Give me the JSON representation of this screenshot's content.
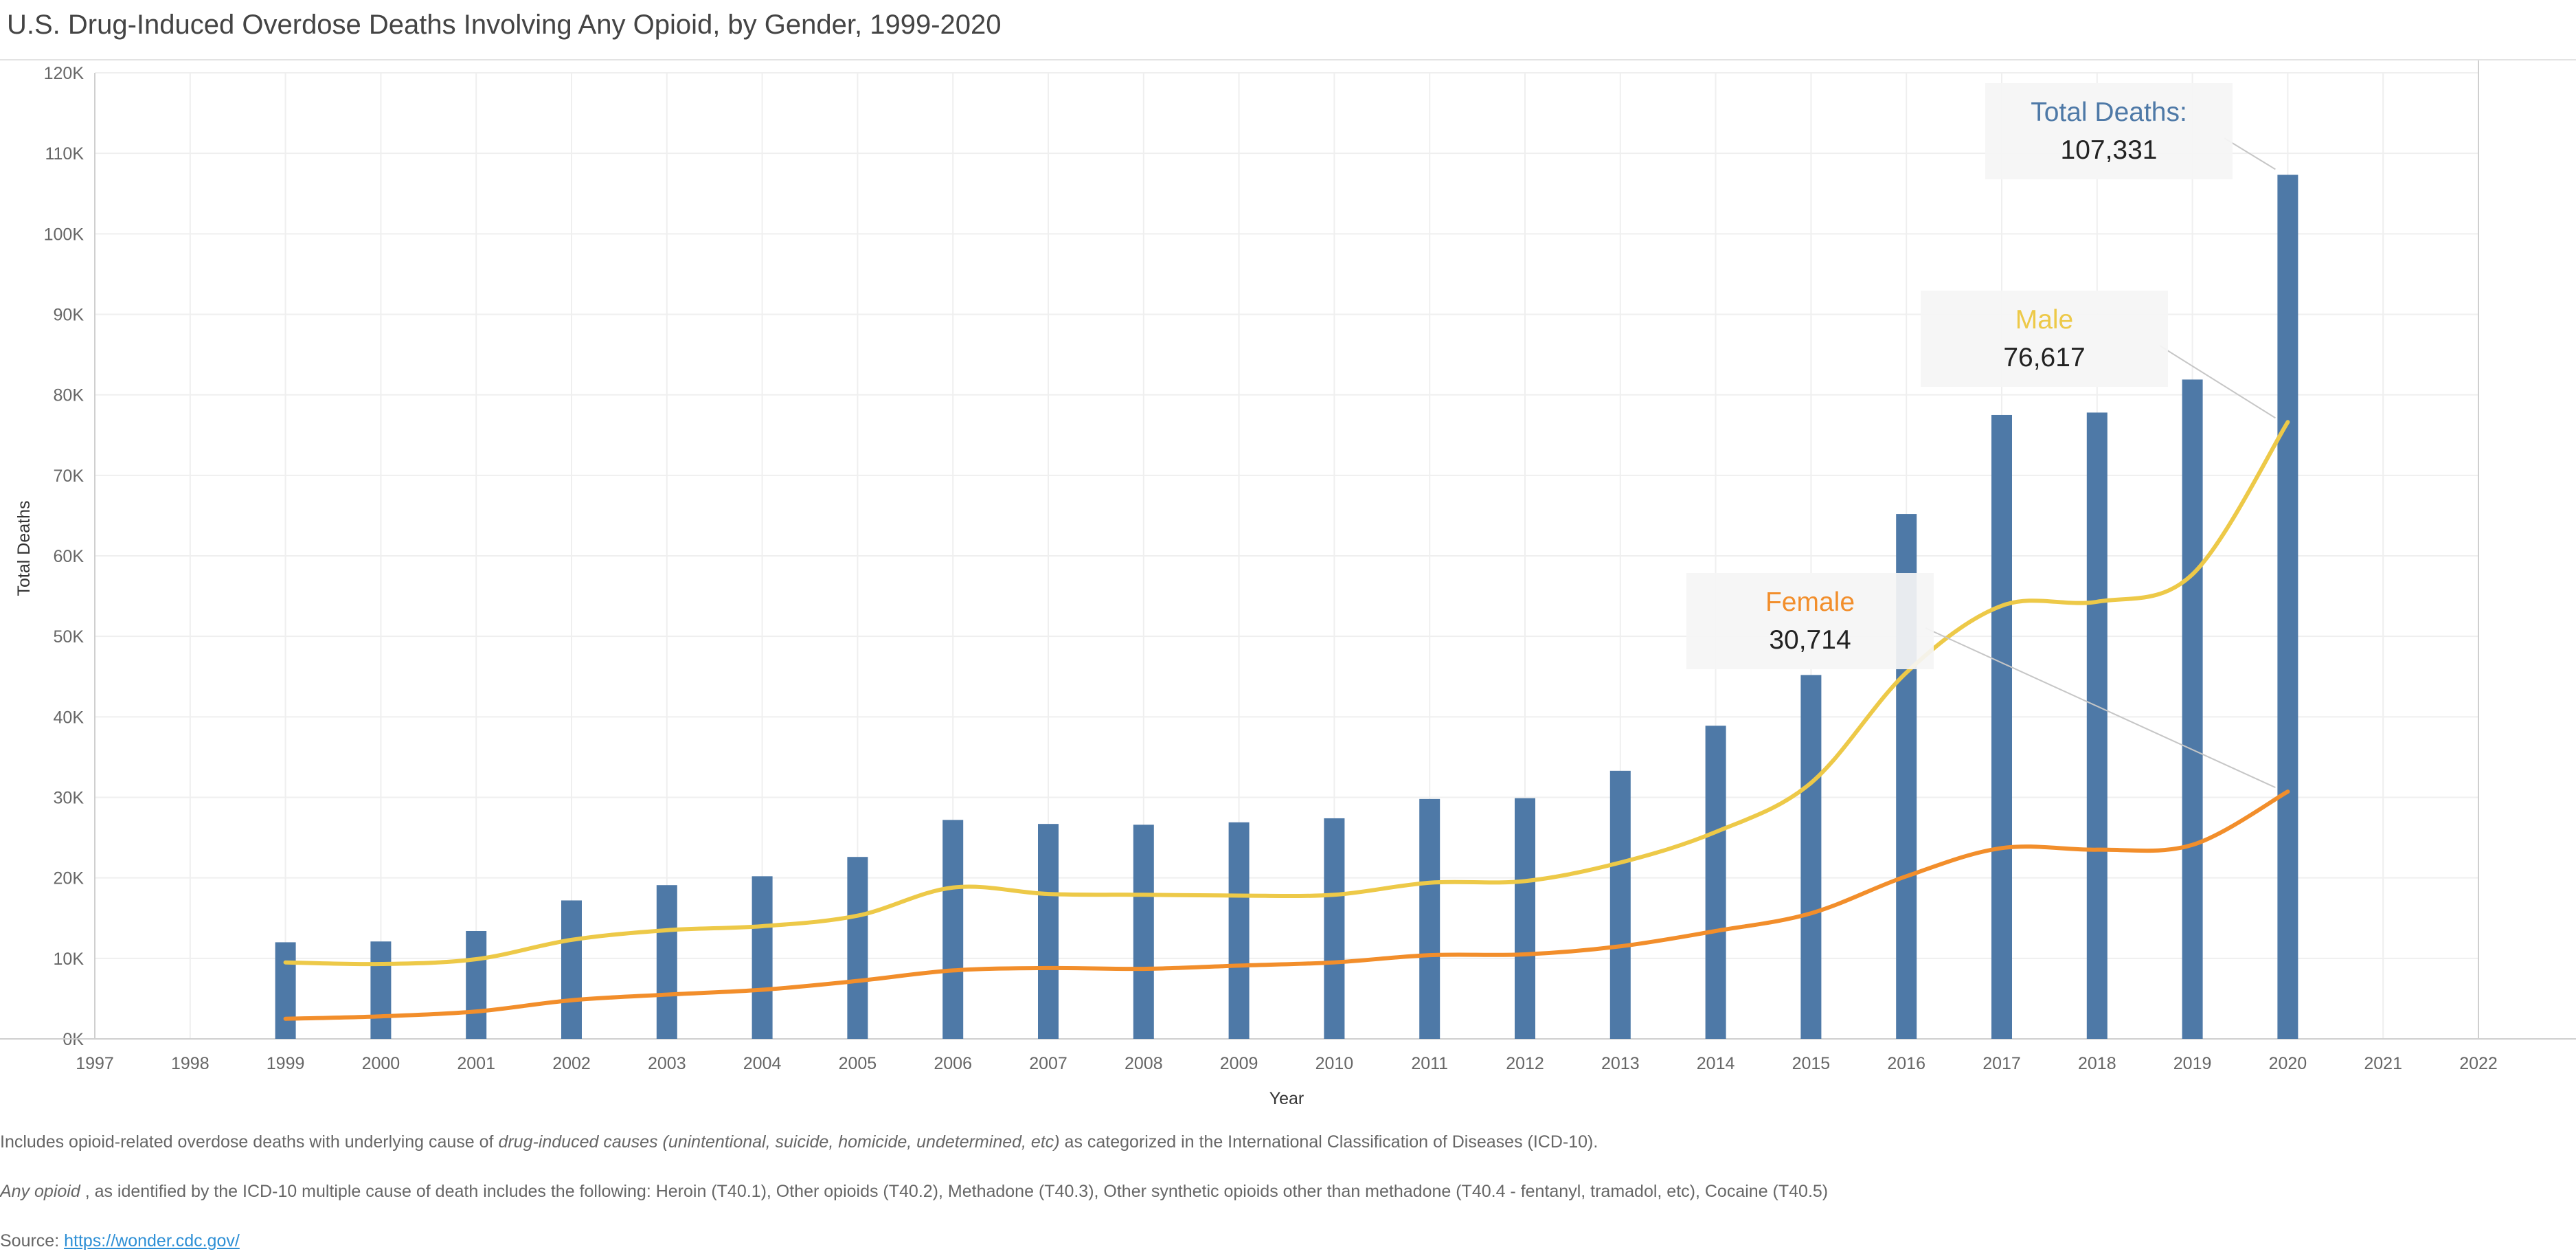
{
  "title": "U.S. Drug-Induced Overdose Deaths Involving Any Opioid, by Gender, 1999-2020",
  "colors": {
    "total": "#4e79a7",
    "male": "#edc948",
    "female": "#f28e2b",
    "grid": "#efefef",
    "axis": "#cfcfcf"
  },
  "chart_data": {
    "type": "bar",
    "xlabel": "Year",
    "ylabel": "Total Deaths",
    "xlim": [
      1997,
      2022
    ],
    "ylim": [
      0,
      120000
    ],
    "x_ticks": [
      "1997",
      "1998",
      "1999",
      "2000",
      "2001",
      "2002",
      "2003",
      "2004",
      "2005",
      "2006",
      "2007",
      "2008",
      "2009",
      "2010",
      "2011",
      "2012",
      "2013",
      "2014",
      "2015",
      "2016",
      "2017",
      "2018",
      "2019",
      "2020",
      "2021",
      "2022"
    ],
    "y_ticks": [
      "0K",
      "10K",
      "20K",
      "30K",
      "40K",
      "50K",
      "60K",
      "70K",
      "80K",
      "90K",
      "100K",
      "110K",
      "120K"
    ],
    "x": [
      1999,
      2000,
      2001,
      2002,
      2003,
      2004,
      2005,
      2006,
      2007,
      2008,
      2009,
      2010,
      2011,
      2012,
      2013,
      2014,
      2015,
      2016,
      2017,
      2018,
      2019,
      2020
    ],
    "series": [
      {
        "name": "Total Deaths",
        "type": "bar",
        "values": [
          12000,
          12100,
          13400,
          17200,
          19100,
          20200,
          22600,
          27200,
          26700,
          26600,
          26900,
          27400,
          29800,
          29900,
          33300,
          38900,
          45200,
          65200,
          77500,
          77800,
          81900,
          107331
        ]
      },
      {
        "name": "Male",
        "type": "line",
        "values": [
          9500,
          9300,
          9900,
          12300,
          13500,
          14000,
          15300,
          18800,
          18000,
          17900,
          17800,
          17900,
          19400,
          19600,
          21900,
          25700,
          31800,
          45500,
          53800,
          54300,
          57700,
          76617
        ]
      },
      {
        "name": "Female",
        "type": "line",
        "values": [
          2500,
          2800,
          3400,
          4800,
          5500,
          6100,
          7200,
          8500,
          8800,
          8700,
          9100,
          9500,
          10400,
          10500,
          11500,
          13400,
          15600,
          20200,
          23700,
          23500,
          24100,
          30714
        ]
      }
    ],
    "annotations": [
      {
        "series": "Total Deaths",
        "label": "Total Deaths:",
        "value": "107,331"
      },
      {
        "series": "Male",
        "label": "Male",
        "value": "76,617"
      },
      {
        "series": "Female",
        "label": "Female",
        "value": "30,714"
      }
    ]
  },
  "footnotes": {
    "line1_pre": "Includes opioid-related overdose deaths with underlying cause of ",
    "line1_italic": "drug-induced causes  (unintentional, suicide, homicide, undetermined, etc)",
    "line1_post": "  as categorized in the International Classification of Diseases (ICD-10).",
    "line2_italic": "Any opioid",
    "line2_post": " , as identified by the ICD-10 multiple cause of death includes the following: Heroin (T40.1), Other opioids (T40.2), Methadone (T40.3), Other synthetic opioids other than methadone (T40.4 - fentanyl, tramadol, etc), Cocaine (T40.5)",
    "source_label": "Source: ",
    "source_link": "https://wonder.cdc.gov/"
  }
}
